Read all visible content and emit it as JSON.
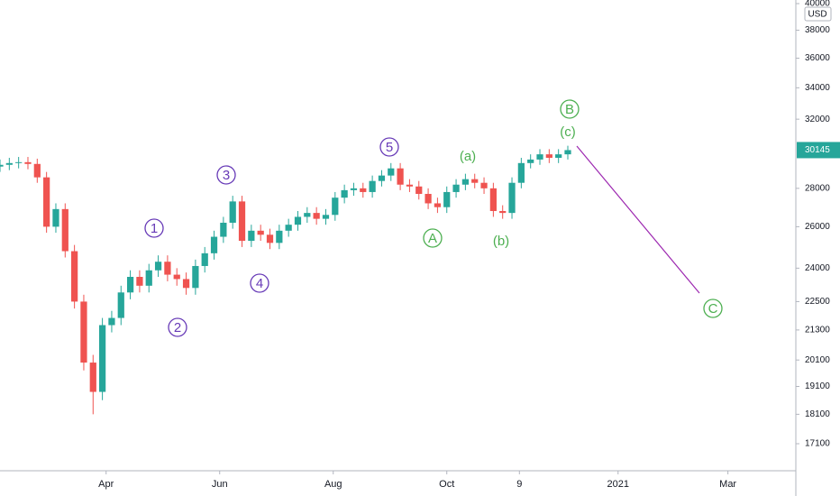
{
  "chart_data": {
    "type": "candlestick",
    "currency": "USD",
    "log_scale": true,
    "grid": false,
    "up_color": "#26a69a",
    "down_color": "#ef5350",
    "xlim": [
      34,
      461
    ],
    "xticks": [
      {
        "value": 91,
        "label": "Apr"
      },
      {
        "value": 152,
        "label": "Jun"
      },
      {
        "value": 213,
        "label": "Aug"
      },
      {
        "value": 274,
        "label": "Oct"
      },
      {
        "value": 313,
        "label": "9"
      },
      {
        "value": 366,
        "label": "2021"
      },
      {
        "value": 425,
        "label": "Mar"
      }
    ],
    "ylim": [
      16230,
      40280
    ],
    "yticks": [
      17100,
      18100,
      19100,
      20100,
      21300,
      22500,
      24000,
      26000,
      28000,
      32000,
      34000,
      36000,
      38000,
      40000
    ],
    "x": [
      34,
      39,
      44,
      49,
      54,
      59,
      64,
      69,
      74,
      79,
      84,
      89,
      94,
      99,
      104,
      109,
      114,
      119,
      124,
      129,
      134,
      139,
      144,
      149,
      154,
      159,
      164,
      169,
      174,
      179,
      184,
      189,
      194,
      199,
      204,
      209,
      214,
      219,
      224,
      229,
      234,
      239,
      244,
      249,
      254,
      259,
      264,
      269,
      274,
      279,
      284,
      289,
      294,
      299,
      304,
      309,
      314,
      319,
      324,
      329,
      334,
      339
    ],
    "open": [
      29200,
      29300,
      29400,
      29450,
      29350,
      28600,
      26000,
      26900,
      24800,
      22500,
      20000,
      18900,
      21500,
      21800,
      22900,
      23600,
      23200,
      23900,
      24300,
      23700,
      23500,
      23100,
      24100,
      24700,
      25500,
      26200,
      27300,
      25300,
      25800,
      25600,
      25200,
      25800,
      26100,
      26500,
      26700,
      26400,
      26600,
      27500,
      27900,
      28000,
      27800,
      28400,
      28700,
      29100,
      28200,
      28100,
      27700,
      27200,
      27000,
      27800,
      28200,
      28500,
      28300,
      28000,
      26800,
      26700,
      28300,
      29400,
      29600,
      29900,
      29700,
      29900
    ],
    "high": [
      29600,
      29700,
      29750,
      29750,
      29650,
      28900,
      27200,
      27200,
      25100,
      22800,
      20300,
      21800,
      22100,
      23200,
      23900,
      23900,
      24200,
      24600,
      24600,
      24000,
      23800,
      24400,
      25000,
      25800,
      26500,
      27600,
      27600,
      26100,
      26100,
      25900,
      26100,
      26400,
      26800,
      27000,
      27000,
      26900,
      27800,
      28200,
      28300,
      28300,
      28700,
      29000,
      29400,
      29400,
      28500,
      28400,
      28000,
      27500,
      28100,
      28500,
      28800,
      28800,
      28600,
      28300,
      27100,
      28600,
      29700,
      29900,
      30200,
      30200,
      30200,
      30400
    ],
    "low": [
      28900,
      29000,
      29100,
      29050,
      28300,
      25700,
      25700,
      24500,
      22200,
      19700,
      18100,
      18600,
      21200,
      21500,
      22600,
      22900,
      22900,
      23600,
      23400,
      23200,
      22800,
      22800,
      23800,
      24400,
      25200,
      25900,
      25000,
      25000,
      25300,
      24900,
      24900,
      25500,
      25800,
      26200,
      26100,
      26100,
      26300,
      27200,
      27600,
      27500,
      27500,
      28100,
      28400,
      27900,
      27800,
      27400,
      26900,
      26700,
      26700,
      27500,
      27900,
      28000,
      27700,
      26500,
      26400,
      26400,
      28000,
      29100,
      29300,
      29400,
      29400,
      29600
    ],
    "close": [
      29300,
      29400,
      29450,
      29350,
      28600,
      26000,
      26900,
      24800,
      22500,
      20000,
      18900,
      21500,
      21800,
      22900,
      23600,
      23200,
      23900,
      24300,
      23700,
      23500,
      23100,
      24100,
      24700,
      25500,
      26200,
      27300,
      25300,
      25800,
      25600,
      25200,
      25800,
      26100,
      26500,
      26700,
      26400,
      26600,
      27500,
      27900,
      28000,
      27800,
      28400,
      28700,
      29100,
      28200,
      28100,
      27700,
      27200,
      27000,
      27800,
      28200,
      28500,
      28300,
      28000,
      26800,
      26700,
      28300,
      29400,
      29600,
      29900,
      29700,
      29900,
      30145
    ],
    "annotations": [
      "1",
      "2",
      "3",
      "4",
      "5",
      "A",
      "B",
      "C",
      "(a)",
      "(b)",
      "(c)"
    ]
  }
}
